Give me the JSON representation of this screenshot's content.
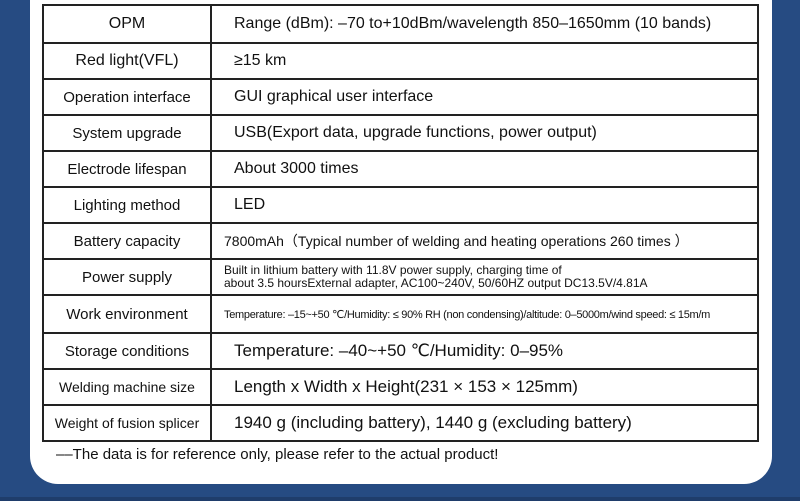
{
  "rows": [
    {
      "label": "OPM",
      "value": "Range (dBm): –70 to+10dBm/wavelength 850–1650mm (10 bands)"
    },
    {
      "label": "Red light(VFL)",
      "value": "≥15 km"
    },
    {
      "label": "Operation interface",
      "value": "GUI graphical user interface"
    },
    {
      "label": "System upgrade",
      "value": "USB(Export data, upgrade functions, power output)"
    },
    {
      "label": "Electrode lifespan",
      "value": "About 3000 times"
    },
    {
      "label": "Lighting method",
      "value": "LED"
    },
    {
      "label": "Battery capacity",
      "value": "7800mAh（Typical number of welding and heating operations 260 times ）"
    },
    {
      "label": "Power supply",
      "value_line1": "Built in lithium battery with 11.8V power supply, charging time of",
      "value_line2": "about 3.5 hoursExternal adapter, AC100~240V, 50/60HZ output DC13.5V/4.81A"
    },
    {
      "label": "Work environment",
      "value": "Temperature: –15~+50 ℃/Humidity: ≤ 90% RH (non condensing)/altitude: 0–5000m/wind speed: ≤ 15m/m"
    },
    {
      "label": "Storage conditions",
      "value": "Temperature: –40~+50 ℃/Humidity: 0–95%"
    },
    {
      "label": "Welding machine size",
      "value": "Length x Width x Height(231 × 153 × 125mm)"
    },
    {
      "label": "Weight of fusion splicer",
      "value": "1940 g (including battery), 1440 g (excluding battery)"
    }
  ],
  "note": "––The data is for reference only, please refer to the actual product!",
  "colors": {
    "background": "#264b82",
    "card": "#ffffff",
    "border": "#222222"
  }
}
